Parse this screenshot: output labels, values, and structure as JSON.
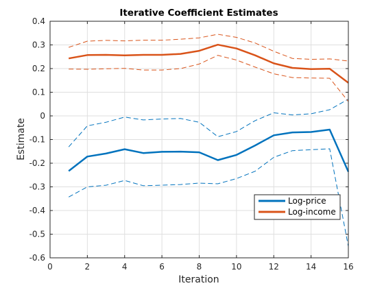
{
  "chart_data": {
    "type": "line",
    "title": "Iterative Coefficient Estimates",
    "xlabel": "Iteration",
    "ylabel": "Estimate",
    "xlim": [
      0,
      16
    ],
    "ylim": [
      -0.6,
      0.4
    ],
    "xticks": [
      0,
      2,
      4,
      6,
      8,
      10,
      12,
      14,
      16
    ],
    "yticks": [
      -0.6,
      -0.5,
      -0.4,
      -0.3,
      -0.2,
      -0.1,
      0,
      0.1,
      0.2,
      0.3,
      0.4
    ],
    "xtick_labels": [
      "0",
      "2",
      "4",
      "6",
      "8",
      "10",
      "12",
      "14",
      "16"
    ],
    "ytick_labels": [
      "-0.6",
      "-0.5",
      "-0.4",
      "-0.3",
      "-0.2",
      "-0.1",
      "0",
      "0.1",
      "0.2",
      "0.3",
      "0.4"
    ],
    "grid": true,
    "legend_position": "lower-right",
    "x": [
      1,
      2,
      3,
      4,
      5,
      6,
      7,
      8,
      9,
      10,
      11,
      12,
      13,
      14,
      15,
      16
    ],
    "series": [
      {
        "name": "Log-price",
        "color": "#0072BD",
        "values": [
          -0.233,
          -0.172,
          -0.159,
          -0.141,
          -0.157,
          -0.152,
          -0.151,
          -0.154,
          -0.187,
          -0.165,
          -0.125,
          -0.082,
          -0.07,
          -0.068,
          -0.058,
          -0.236
        ],
        "lower": [
          -0.343,
          -0.3,
          -0.293,
          -0.273,
          -0.295,
          -0.293,
          -0.29,
          -0.284,
          -0.287,
          -0.265,
          -0.234,
          -0.175,
          -0.147,
          -0.143,
          -0.139,
          -0.552
        ],
        "upper": [
          -0.131,
          -0.042,
          -0.027,
          -0.005,
          -0.017,
          -0.013,
          -0.011,
          -0.027,
          -0.088,
          -0.066,
          -0.02,
          0.013,
          0.004,
          0.009,
          0.026,
          0.071
        ]
      },
      {
        "name": "Log-income",
        "color": "#D95319",
        "values": [
          0.243,
          0.257,
          0.258,
          0.256,
          0.258,
          0.258,
          0.262,
          0.275,
          0.301,
          0.285,
          0.256,
          0.222,
          0.203,
          0.198,
          0.199,
          0.14
        ],
        "lower": [
          0.198,
          0.197,
          0.199,
          0.201,
          0.194,
          0.194,
          0.2,
          0.219,
          0.256,
          0.236,
          0.206,
          0.178,
          0.162,
          0.16,
          0.159,
          0.061
        ],
        "upper": [
          0.29,
          0.316,
          0.319,
          0.317,
          0.32,
          0.32,
          0.324,
          0.33,
          0.345,
          0.332,
          0.308,
          0.273,
          0.243,
          0.239,
          0.241,
          0.232
        ]
      }
    ]
  }
}
